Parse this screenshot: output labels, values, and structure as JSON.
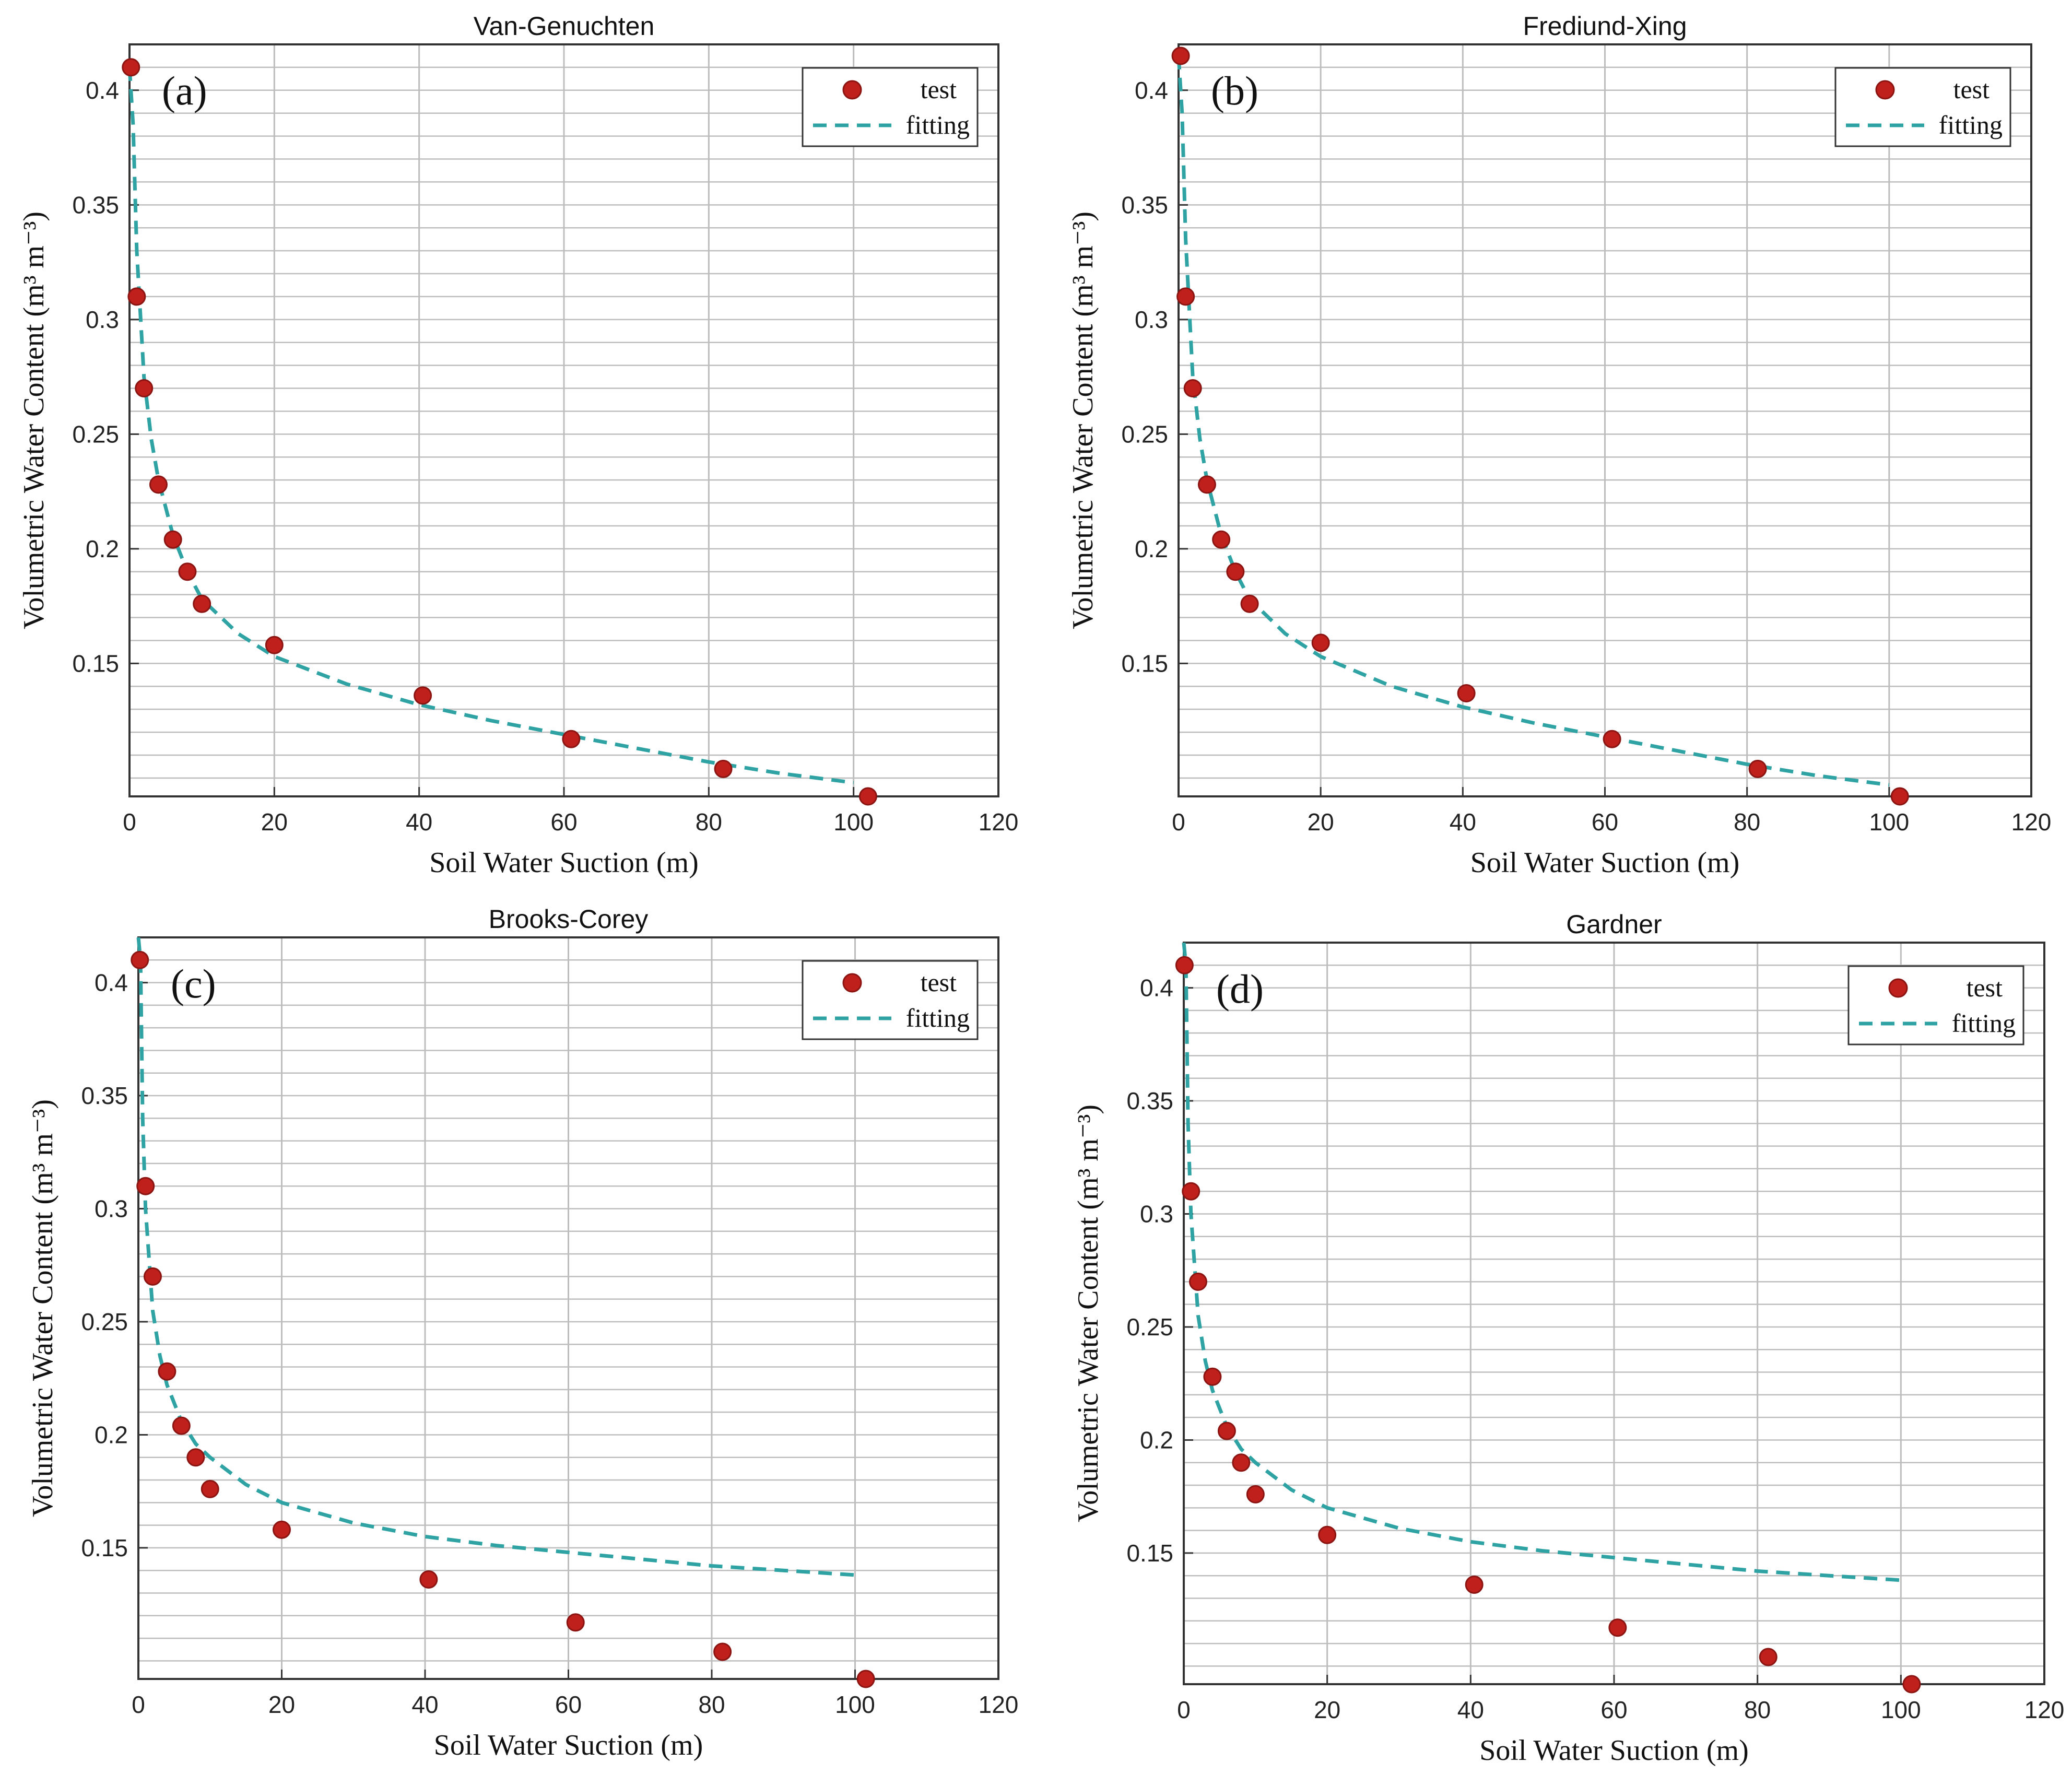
{
  "colors": {
    "point": "#c0201c",
    "point_edge": "#8a1512",
    "fit": "#2fa3a3",
    "grid": "#bdbdbd",
    "axis": "#333333"
  },
  "chart_data": [
    {
      "type": "scatter",
      "panel_label": "(a)",
      "title": "Van-Genuchten",
      "xlabel": "Soil Water Suction (m)",
      "ylabel": "Volumetric  Water Content (m³ m⁻³)",
      "xlim": [
        0,
        120
      ],
      "ylim": [
        0.092,
        0.42
      ],
      "x_ticks": [
        "0",
        "20",
        "40",
        "60",
        "80",
        "100",
        "120"
      ],
      "y_ticks": [
        {
          "label": "0.4",
          "value": 0.4
        },
        {
          "label": "0.35",
          "value": 0.35
        },
        {
          "label": "0.3",
          "value": 0.3
        },
        {
          "label": "0.25",
          "value": 0.25
        },
        {
          "label": "0.2",
          "value": 0.2
        },
        {
          "label": "0.15",
          "value": 0.15
        }
      ],
      "legend": {
        "position": "top-right",
        "entries": [
          "test",
          "fitting"
        ]
      },
      "series": [
        {
          "name": "test",
          "kind": "points",
          "x": [
            0.2,
            1,
            2,
            4,
            6,
            8,
            10,
            20,
            40.5,
            61,
            82,
            102
          ],
          "y": [
            0.41,
            0.31,
            0.27,
            0.228,
            0.204,
            0.19,
            0.176,
            0.158,
            0.136,
            0.117,
            0.104,
            0.092
          ]
        },
        {
          "name": "fitting",
          "kind": "line",
          "x": [
            0,
            0.5,
            1,
            2,
            3,
            4,
            6,
            8,
            10,
            15,
            20,
            30,
            40,
            50,
            60,
            70,
            80,
            90,
            100
          ],
          "y": [
            0.41,
            0.385,
            0.33,
            0.275,
            0.248,
            0.23,
            0.206,
            0.19,
            0.178,
            0.163,
            0.153,
            0.141,
            0.132,
            0.125,
            0.119,
            0.113,
            0.107,
            0.102,
            0.098
          ]
        }
      ]
    },
    {
      "type": "scatter",
      "panel_label": "(b)",
      "title": "Frediund-Xing",
      "xlabel": "Soil Water Suction (m)",
      "ylabel": "Volumetric  Water Content (m³ m⁻³)",
      "xlim": [
        0,
        120
      ],
      "ylim": [
        0.092,
        0.42
      ],
      "x_ticks": [
        "0",
        "20",
        "40",
        "60",
        "80",
        "100",
        "120"
      ],
      "y_ticks": [
        {
          "label": "0.4",
          "value": 0.4
        },
        {
          "label": "0.35",
          "value": 0.35
        },
        {
          "label": "0.3",
          "value": 0.3
        },
        {
          "label": "0.25",
          "value": 0.25
        },
        {
          "label": "0.2",
          "value": 0.2
        },
        {
          "label": "0.15",
          "value": 0.15
        }
      ],
      "legend": {
        "position": "top-right",
        "entries": [
          "test",
          "fitting"
        ]
      },
      "series": [
        {
          "name": "test",
          "kind": "points",
          "x": [
            0.3,
            1,
            2,
            4,
            6,
            8,
            10,
            20,
            40.5,
            61,
            81.5,
            101.5
          ],
          "y": [
            0.415,
            0.31,
            0.27,
            0.228,
            0.204,
            0.19,
            0.176,
            0.159,
            0.137,
            0.117,
            0.104,
            0.092
          ]
        },
        {
          "name": "fitting",
          "kind": "line",
          "x": [
            0,
            0.5,
            1,
            2,
            3,
            4,
            6,
            8,
            10,
            15,
            20,
            30,
            40,
            50,
            60,
            70,
            80,
            90,
            100
          ],
          "y": [
            0.415,
            0.39,
            0.335,
            0.275,
            0.248,
            0.23,
            0.206,
            0.19,
            0.178,
            0.163,
            0.153,
            0.14,
            0.131,
            0.124,
            0.118,
            0.112,
            0.106,
            0.101,
            0.097
          ]
        }
      ]
    },
    {
      "type": "scatter",
      "panel_label": "(c)",
      "title": "Brooks-Corey",
      "xlabel": "Soil Water Suction (m)",
      "ylabel": "Volumetric  Water Content (m³ m⁻³)",
      "xlim": [
        0,
        120
      ],
      "ylim": [
        0.092,
        0.42
      ],
      "x_ticks": [
        "0",
        "20",
        "40",
        "60",
        "80",
        "100",
        "120"
      ],
      "y_ticks": [
        {
          "label": "0.4",
          "value": 0.4
        },
        {
          "label": "0.35",
          "value": 0.35
        },
        {
          "label": "0.3",
          "value": 0.3
        },
        {
          "label": "0.25",
          "value": 0.25
        },
        {
          "label": "0.2",
          "value": 0.2
        },
        {
          "label": "0.15",
          "value": 0.15
        }
      ],
      "legend": {
        "position": "top-right",
        "entries": [
          "test",
          "fitting"
        ]
      },
      "series": [
        {
          "name": "test",
          "kind": "points",
          "x": [
            0.2,
            1,
            2,
            4,
            6,
            8,
            10,
            20,
            40.5,
            61,
            81.5,
            101.5
          ],
          "y": [
            0.41,
            0.31,
            0.27,
            0.228,
            0.204,
            0.19,
            0.176,
            0.158,
            0.136,
            0.117,
            0.104,
            0.092
          ]
        },
        {
          "name": "fitting",
          "kind": "line",
          "x": [
            0,
            0.3,
            0.6,
            1,
            2,
            3,
            4,
            6,
            8,
            10,
            15,
            20,
            30,
            40,
            50,
            60,
            70,
            80,
            90,
            100
          ],
          "y": [
            0.42,
            0.41,
            0.34,
            0.3,
            0.255,
            0.235,
            0.222,
            0.206,
            0.196,
            0.19,
            0.178,
            0.17,
            0.161,
            0.155,
            0.151,
            0.148,
            0.145,
            0.142,
            0.14,
            0.138
          ]
        }
      ]
    },
    {
      "type": "scatter",
      "panel_label": "(d)",
      "title": "Gardner",
      "xlabel": "Soil Water Suction (m)",
      "ylabel": "Volumetric  Water Content (m³ m⁻³)",
      "xlim": [
        0,
        120
      ],
      "ylim": [
        0.092,
        0.42
      ],
      "x_ticks": [
        "0",
        "20",
        "40",
        "60",
        "80",
        "100",
        "120"
      ],
      "y_ticks": [
        {
          "label": "0.4",
          "value": 0.4
        },
        {
          "label": "0.35",
          "value": 0.35
        },
        {
          "label": "0.3",
          "value": 0.3
        },
        {
          "label": "0.25",
          "value": 0.25
        },
        {
          "label": "0.2",
          "value": 0.2
        },
        {
          "label": "0.15",
          "value": 0.15
        }
      ],
      "legend": {
        "position": "top-right",
        "entries": [
          "test",
          "fitting"
        ]
      },
      "series": [
        {
          "name": "test",
          "kind": "points",
          "x": [
            0.1,
            1,
            2,
            4,
            6,
            8,
            10,
            20,
            40.5,
            60.5,
            81.5,
            101.5
          ],
          "y": [
            0.41,
            0.31,
            0.27,
            0.228,
            0.204,
            0.19,
            0.176,
            0.158,
            0.136,
            0.117,
            0.104,
            0.092
          ]
        },
        {
          "name": "fitting",
          "kind": "line",
          "x": [
            0,
            0.3,
            0.6,
            1,
            2,
            3,
            4,
            6,
            8,
            10,
            15,
            20,
            30,
            40,
            50,
            60,
            70,
            80,
            90,
            100
          ],
          "y": [
            0.42,
            0.41,
            0.34,
            0.3,
            0.255,
            0.235,
            0.222,
            0.206,
            0.196,
            0.19,
            0.178,
            0.17,
            0.161,
            0.155,
            0.151,
            0.148,
            0.145,
            0.142,
            0.14,
            0.138
          ]
        }
      ]
    }
  ]
}
